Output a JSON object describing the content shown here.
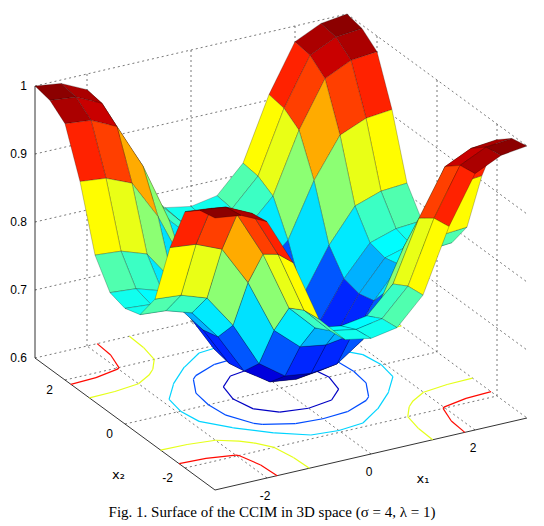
{
  "chart_data": {
    "type": "surface",
    "title": "Fig. 1. Surface of the CCIM in 3D space (σ = 4, λ = 1)",
    "x_label": "x₁",
    "y_label": "x₂",
    "x": [
      -3,
      -2.5,
      -2,
      -1.5,
      -1,
      -0.5,
      0,
      0.5,
      1,
      1.5,
      2,
      2.5,
      3
    ],
    "y": [
      -3,
      -2.5,
      -2,
      -1.5,
      -1,
      -0.5,
      0,
      0.5,
      1,
      1.5,
      2,
      2.5,
      3
    ],
    "z": [
      [
        1,
        0.995,
        0.977,
        0.908,
        0.816,
        0.777,
        0.77,
        0.777,
        0.816,
        0.908,
        0.977,
        0.995,
        1
      ],
      [
        0.995,
        0.991,
        0.973,
        0.904,
        0.813,
        0.774,
        0.767,
        0.774,
        0.813,
        0.904,
        0.973,
        0.991,
        0.995
      ],
      [
        0.977,
        0.973,
        0.955,
        0.888,
        0.8,
        0.762,
        0.756,
        0.762,
        0.8,
        0.888,
        0.955,
        0.973,
        0.977
      ],
      [
        0.908,
        0.904,
        0.888,
        0.83,
        0.751,
        0.718,
        0.712,
        0.718,
        0.751,
        0.83,
        0.888,
        0.904,
        0.908
      ],
      [
        0.816,
        0.813,
        0.8,
        0.751,
        0.686,
        0.659,
        0.654,
        0.659,
        0.686,
        0.751,
        0.8,
        0.813,
        0.816
      ],
      [
        0.777,
        0.774,
        0.762,
        0.718,
        0.659,
        0.634,
        0.629,
        0.634,
        0.659,
        0.718,
        0.762,
        0.774,
        0.777
      ],
      [
        0.77,
        0.767,
        0.756,
        0.712,
        0.654,
        0.629,
        0.625,
        0.629,
        0.654,
        0.712,
        0.756,
        0.767,
        0.77
      ],
      [
        0.777,
        0.774,
        0.762,
        0.718,
        0.659,
        0.634,
        0.629,
        0.634,
        0.659,
        0.718,
        0.762,
        0.774,
        0.777
      ],
      [
        0.816,
        0.813,
        0.8,
        0.751,
        0.686,
        0.659,
        0.654,
        0.659,
        0.686,
        0.751,
        0.8,
        0.813,
        0.816
      ],
      [
        0.908,
        0.904,
        0.888,
        0.83,
        0.751,
        0.718,
        0.712,
        0.718,
        0.751,
        0.83,
        0.888,
        0.904,
        0.908
      ],
      [
        0.977,
        0.973,
        0.955,
        0.888,
        0.8,
        0.762,
        0.756,
        0.762,
        0.8,
        0.888,
        0.955,
        0.973,
        0.977
      ],
      [
        0.995,
        0.991,
        0.973,
        0.904,
        0.813,
        0.774,
        0.767,
        0.774,
        0.813,
        0.904,
        0.973,
        0.991,
        0.995
      ],
      [
        1,
        0.995,
        0.977,
        0.908,
        0.816,
        0.777,
        0.77,
        0.777,
        0.816,
        0.908,
        0.977,
        0.995,
        1
      ]
    ],
    "xlim": [
      -3,
      3
    ],
    "ylim": [
      -3,
      3
    ],
    "zlim": [
      0.6,
      1
    ],
    "xticks": [
      -2,
      0,
      2
    ],
    "yticks": [
      -2,
      0,
      2
    ],
    "zticks": [
      0.6,
      0.7,
      0.8,
      0.9,
      1
    ],
    "contour_levels": [
      0.65,
      0.7,
      0.75,
      0.85,
      0.95
    ],
    "grid": true
  }
}
